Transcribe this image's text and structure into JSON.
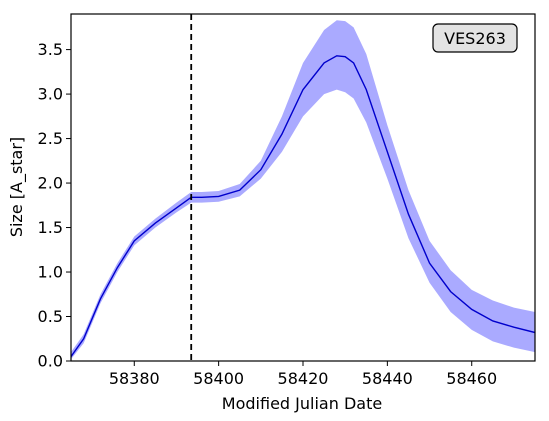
{
  "chart_data": {
    "type": "line",
    "xlabel": "Modified Julian Date",
    "ylabel": "Size [A_star]",
    "xlim": [
      58365,
      58475
    ],
    "ylim": [
      0.0,
      3.9
    ],
    "xticks": [
      58380,
      58400,
      58420,
      58440,
      58460
    ],
    "yticks": [
      0.0,
      0.5,
      1.0,
      1.5,
      2.0,
      2.5,
      3.0,
      3.5
    ],
    "xtick_labels": [
      "58380",
      "58400",
      "58420",
      "58440",
      "58460"
    ],
    "ytick_labels": [
      "0.0",
      "0.5",
      "1.0",
      "1.5",
      "2.0",
      "2.5",
      "3.0",
      "3.5"
    ],
    "vline_x": 58393.5,
    "annotation": "VES263",
    "grid": false,
    "line_color": "#0000cc",
    "band_color": "#aaaaff",
    "series": [
      {
        "x": [
          58365,
          58368,
          58372,
          58376,
          58380,
          58385,
          58390,
          58393.5,
          58396,
          58400,
          58405,
          58410,
          58415,
          58420,
          58425,
          58428,
          58430,
          58432,
          58435,
          58440,
          58445,
          58450,
          58455,
          58460,
          58465,
          58470,
          58475
        ],
        "y": [
          0.05,
          0.25,
          0.7,
          1.05,
          1.35,
          1.55,
          1.72,
          1.84,
          1.84,
          1.85,
          1.92,
          2.15,
          2.55,
          3.05,
          3.35,
          3.43,
          3.42,
          3.35,
          3.05,
          2.35,
          1.65,
          1.1,
          0.78,
          0.58,
          0.45,
          0.38,
          0.32
        ],
        "lower": [
          0.02,
          0.2,
          0.65,
          1.0,
          1.3,
          1.5,
          1.67,
          1.78,
          1.78,
          1.79,
          1.85,
          2.05,
          2.35,
          2.75,
          3.0,
          3.05,
          3.02,
          2.95,
          2.68,
          2.05,
          1.38,
          0.88,
          0.55,
          0.35,
          0.22,
          0.15,
          0.1
        ],
        "upper": [
          0.1,
          0.3,
          0.75,
          1.1,
          1.4,
          1.6,
          1.78,
          1.9,
          1.9,
          1.91,
          1.99,
          2.25,
          2.75,
          3.35,
          3.72,
          3.83,
          3.82,
          3.75,
          3.45,
          2.65,
          1.92,
          1.35,
          1.02,
          0.8,
          0.68,
          0.6,
          0.55
        ]
      }
    ]
  }
}
